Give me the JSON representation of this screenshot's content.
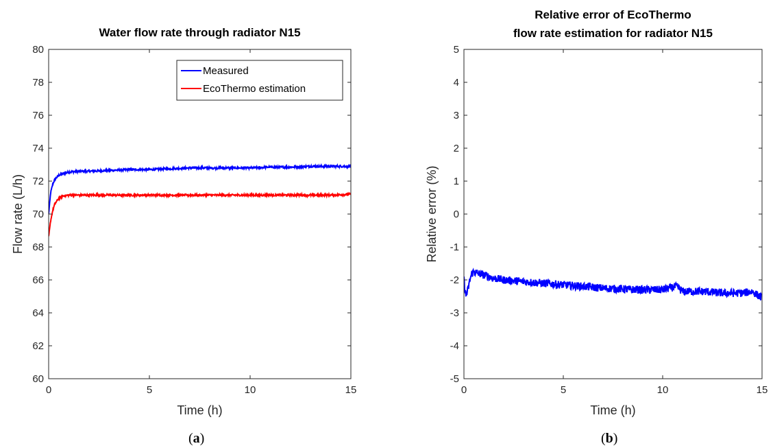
{
  "chart_data": [
    {
      "type": "line",
      "title": [
        "Water flow rate through radiator N15"
      ],
      "xlabel": "Time (h)",
      "ylabel": "Flow rate (L/h)",
      "xlim": [
        0,
        15
      ],
      "ylim": [
        60,
        80
      ],
      "xticks": [
        0,
        5,
        10,
        15
      ],
      "yticks": [
        60,
        62,
        64,
        66,
        68,
        70,
        72,
        74,
        76,
        78,
        80
      ],
      "grid": false,
      "legend_position": "top-right",
      "panel_label": "a",
      "series": [
        {
          "name": "Measured",
          "color": "#0000ff",
          "x": [
            0,
            0.1,
            0.2,
            0.3,
            0.5,
            0.7,
            1,
            1.5,
            2,
            3,
            4,
            5,
            6,
            7,
            8,
            9,
            10,
            11,
            12,
            13,
            14,
            15
          ],
          "y": [
            70.0,
            71.3,
            71.8,
            72.1,
            72.35,
            72.45,
            72.55,
            72.6,
            72.6,
            72.65,
            72.7,
            72.7,
            72.75,
            72.8,
            72.8,
            72.8,
            72.8,
            72.85,
            72.85,
            72.9,
            72.9,
            72.9
          ]
        },
        {
          "name": "EcoThermo estimation",
          "color": "#ff0000",
          "x": [
            0,
            0.1,
            0.2,
            0.3,
            0.5,
            0.7,
            1,
            1.5,
            2,
            3,
            4,
            5,
            6,
            7,
            8,
            9,
            10,
            11,
            12,
            13,
            14,
            15
          ],
          "y": [
            68.6,
            69.6,
            70.2,
            70.6,
            70.95,
            71.1,
            71.15,
            71.15,
            71.15,
            71.15,
            71.15,
            71.15,
            71.15,
            71.15,
            71.15,
            71.15,
            71.15,
            71.15,
            71.15,
            71.15,
            71.15,
            71.2
          ]
        }
      ]
    },
    {
      "type": "line",
      "title": [
        "Relative error of EcoThermo",
        "flow rate estimation for radiator N15"
      ],
      "xlabel": "Time (h)",
      "ylabel": "Relative error (%)",
      "xlim": [
        0,
        15
      ],
      "ylim": [
        -5,
        5
      ],
      "xticks": [
        0,
        5,
        10,
        15
      ],
      "yticks": [
        -5,
        -4,
        -3,
        -2,
        -1,
        0,
        1,
        2,
        3,
        4,
        5
      ],
      "grid": false,
      "panel_label": "b",
      "series": [
        {
          "color": "#0000ff",
          "x": [
            0,
            0.1,
            0.2,
            0.3,
            0.4,
            0.5,
            0.7,
            1,
            1.5,
            2,
            3,
            4,
            5,
            6,
            7,
            8,
            9,
            10,
            10.7,
            11,
            12,
            13,
            14,
            14.5,
            15
          ],
          "y": [
            -2.0,
            -2.5,
            -2.3,
            -2.0,
            -1.8,
            -1.75,
            -1.8,
            -1.85,
            -1.95,
            -2.0,
            -2.05,
            -2.1,
            -2.15,
            -2.2,
            -2.25,
            -2.28,
            -2.3,
            -2.3,
            -2.2,
            -2.35,
            -2.35,
            -2.4,
            -2.4,
            -2.35,
            -2.55
          ]
        }
      ]
    }
  ]
}
